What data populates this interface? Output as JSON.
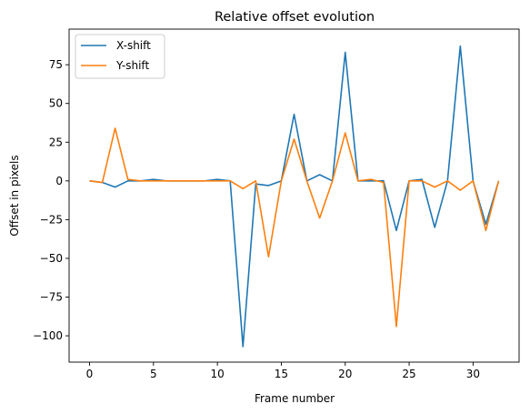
{
  "chart_data": {
    "type": "line",
    "title": "Relative offset evolution",
    "xlabel": "Frame number",
    "ylabel": "Offset in pixels",
    "xlim": [
      -1.6,
      33.6
    ],
    "ylim": [
      -117,
      98
    ],
    "xticks": [
      0,
      5,
      10,
      15,
      20,
      25,
      30
    ],
    "yticks": [
      -100,
      -75,
      -50,
      -25,
      0,
      25,
      50,
      75
    ],
    "ytick_labels": [
      "−100",
      "−75",
      "−50",
      "−25",
      "0",
      "25",
      "50",
      "75"
    ],
    "legend_position": "top-left",
    "grid": false,
    "x": [
      0,
      1,
      2,
      3,
      4,
      5,
      6,
      7,
      8,
      9,
      10,
      11,
      12,
      13,
      14,
      15,
      16,
      17,
      18,
      19,
      20,
      21,
      22,
      23,
      24,
      25,
      26,
      27,
      28,
      29,
      30,
      31,
      32
    ],
    "series": [
      {
        "name": "X-shift",
        "color": "#1f77b4",
        "values": [
          0,
          -1,
          -4,
          0,
          0,
          1,
          0,
          0,
          0,
          0,
          1,
          0,
          -107,
          -2,
          -3,
          0,
          43,
          0,
          4,
          0,
          83,
          0,
          0,
          0,
          -32,
          0,
          1,
          -30,
          0,
          87,
          0,
          -28,
          0
        ]
      },
      {
        "name": "Y-shift",
        "color": "#ff7f0e",
        "values": [
          0,
          -1,
          34,
          1,
          0,
          0,
          0,
          0,
          0,
          0,
          0,
          0,
          -5,
          0,
          -49,
          0,
          27,
          0,
          -24,
          0,
          31,
          0,
          1,
          -1,
          -94,
          0,
          0,
          -4,
          0,
          -6,
          0,
          -32,
          0
        ]
      }
    ]
  }
}
